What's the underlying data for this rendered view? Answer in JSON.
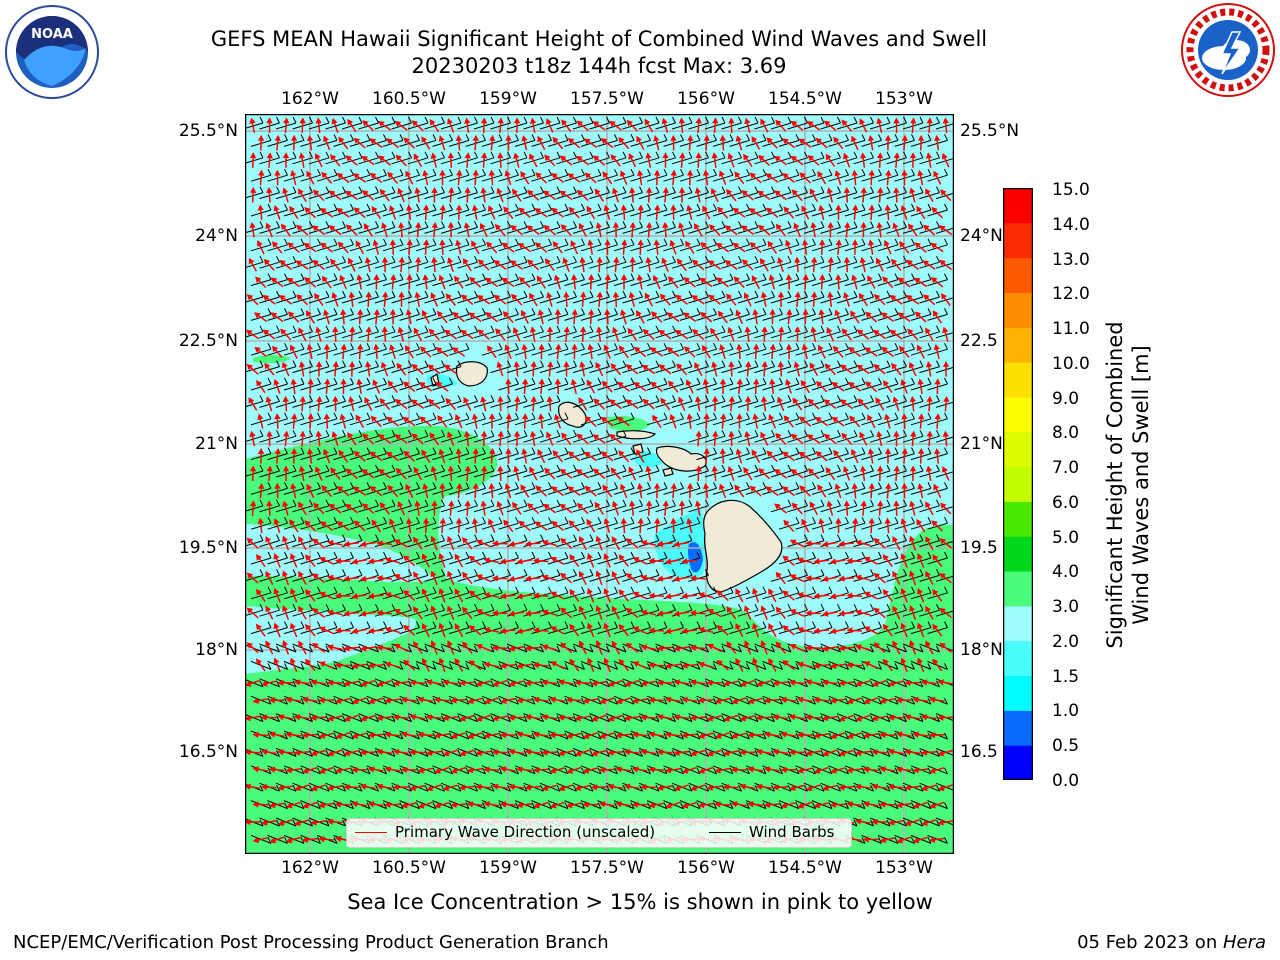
{
  "title": {
    "line1": "GEFS MEAN Hawaii Significant Height of Combined Wind Waves and Swell",
    "line2": "20230203 t18z 144h fcst   Max: 3.69"
  },
  "logos": {
    "left": {
      "icon": "noaa-logo",
      "text": "NOAA"
    },
    "right": {
      "icon": "nws-logo",
      "text": "NATIONAL WEATHER SERVICE"
    }
  },
  "map": {
    "lon_labels": [
      "162°W",
      "160.5°W",
      "159°W",
      "157.5°W",
      "156°W",
      "154.5°W",
      "153°W"
    ],
    "lat_labels_left": [
      "25.5°N",
      "24°N",
      "22.5°N",
      "21°N",
      "19.5°N",
      "18°N",
      "16.5°N"
    ],
    "lat_labels_right": [
      "25.5°N",
      "24°N",
      "22.5",
      "21°N",
      "19.5",
      "18°N",
      "16.5"
    ],
    "lon_range": [
      -163,
      -152.2
    ],
    "lat_range": [
      15,
      25.7
    ],
    "grid": true,
    "colors": {
      "ocean_2_3m": "#9ffcfc",
      "ocean_3_4m": "#4afc7c",
      "land": "#efebd7",
      "wave_arrows": "#ff0000",
      "wind_barbs": "#000000"
    }
  },
  "colorbar": {
    "title_line1": "Significant Height of Combined",
    "title_line2": "Wind Waves and Swell [m]",
    "ticks": [
      "15.0",
      "14.0",
      "13.0",
      "12.0",
      "11.0",
      "10.0",
      "9.0",
      "8.0",
      "7.0",
      "6.0",
      "5.0",
      "4.0",
      "3.0",
      "2.0",
      "1.5",
      "1.0",
      "0.5",
      "0.0"
    ],
    "colors": [
      "#0000ff",
      "#0a6cff",
      "#00fcfc",
      "#4afcfc",
      "#9ffcfc",
      "#4afc7c",
      "#00d81c",
      "#4ae800",
      "#c4fc00",
      "#dcfc00",
      "#fcfc00",
      "#fce000",
      "#fcb400",
      "#fc8c00",
      "#fc5a00",
      "#fc2c00",
      "#fc0000"
    ]
  },
  "legend": {
    "wave_direction": "Primary Wave Direction (unscaled)",
    "wind_barbs": "Wind Barbs"
  },
  "note": "Sea Ice Concentration > 15% is shown in pink to yellow",
  "footer": {
    "left": "NCEP/EMC/Verification Post Processing Product Generation Branch",
    "right_date": "05 Feb 2023 on ",
    "right_host": "Hera"
  }
}
